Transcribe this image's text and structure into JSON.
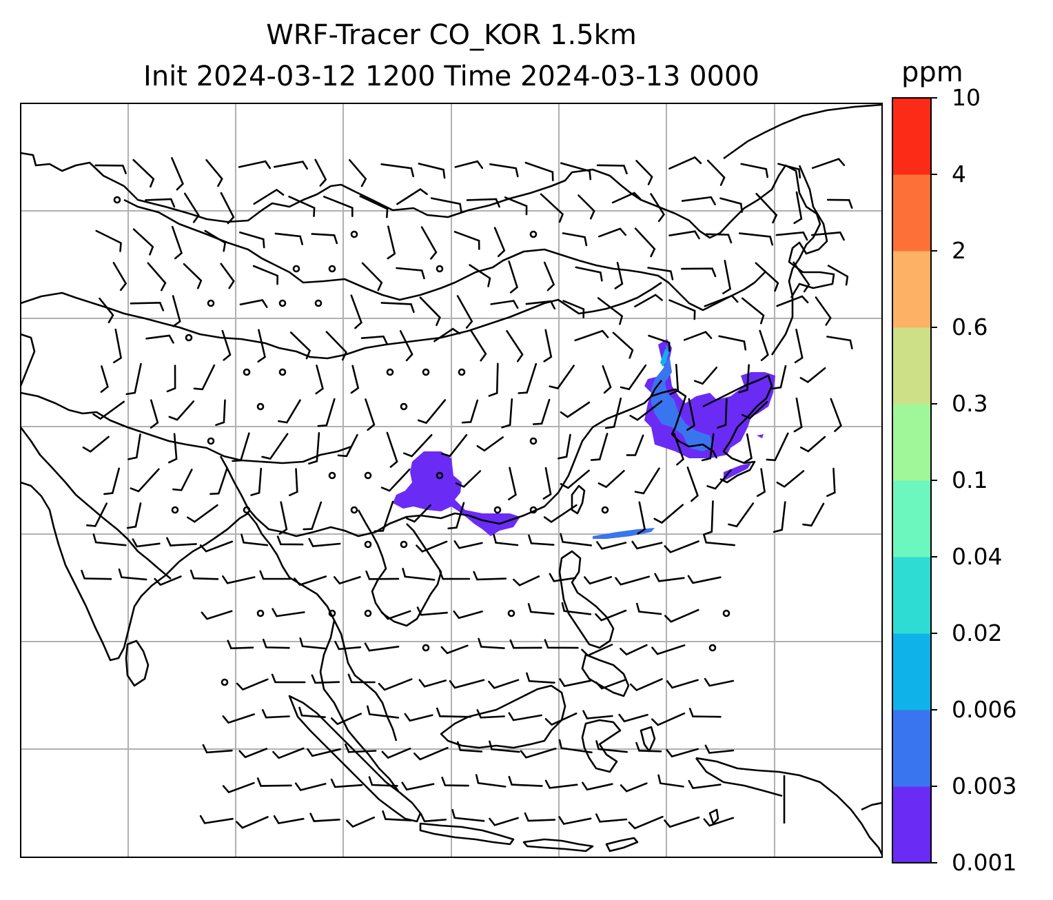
{
  "title": {
    "line1": "WRF-Tracer CO_KOR 1.5km",
    "line2": "Init 2024-03-12 1200 Time 2024-03-13 0000"
  },
  "colorbar": {
    "unit": "ppm",
    "ticks": [
      "0.001",
      "0.003",
      "0.006",
      "0.02",
      "0.04",
      "0.1",
      "0.3",
      "0.6",
      "2",
      "4",
      "10"
    ],
    "colors": [
      "#6a2bf5",
      "#3a75f0",
      "#0fb3ea",
      "#2fdcd3",
      "#6cf7bf",
      "#9ff79a",
      "#cde087",
      "#fdb165",
      "#fd7139",
      "#fb2b18"
    ]
  },
  "map": {
    "gridlines": true,
    "coastline_color": "#000000",
    "gridline_color": "#b0b0b0",
    "wind_barbs": true
  }
}
